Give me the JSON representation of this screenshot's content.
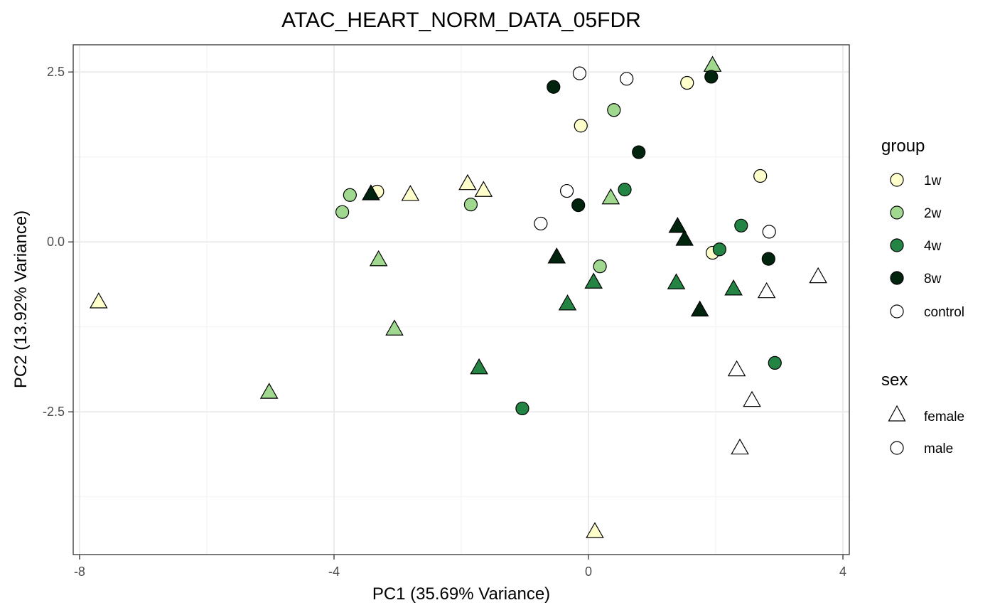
{
  "chart_data": {
    "type": "scatter",
    "title": "ATAC_HEART_NORM_DATA_05FDR",
    "xlabel": "PC1 (35.69% Variance)",
    "ylabel": "PC2 (13.92% Variance)",
    "xlim": [
      -8.1,
      4.1
    ],
    "ylim": [
      -4.6,
      2.9
    ],
    "x_ticks": [
      -8,
      -4,
      0,
      4
    ],
    "x_tick_labels": [
      "-8",
      "-4",
      "0",
      "4"
    ],
    "y_ticks": [
      2.5,
      0.0,
      -2.5
    ],
    "y_tick_labels": [
      "2.5",
      "0.0",
      "-2.5"
    ],
    "grid": true,
    "legend_placement": "right",
    "colors": {
      "1w": "#ffffcc",
      "2w": "#a1d88f",
      "4w": "#238443",
      "8w": "#00240e",
      "control": "#ffffff"
    },
    "legends": [
      {
        "title": "group",
        "entries": [
          "1w",
          "2w",
          "4w",
          "8w",
          "control"
        ]
      },
      {
        "title": "sex",
        "entries": [
          "female",
          "male"
        ]
      }
    ],
    "points": [
      {
        "x": -7.7,
        "y": -0.88,
        "group": "1w",
        "sex": "female"
      },
      {
        "x": -3.32,
        "y": 0.74,
        "group": "1w",
        "sex": "male"
      },
      {
        "x": -2.8,
        "y": 0.7,
        "group": "1w",
        "sex": "female"
      },
      {
        "x": -1.9,
        "y": 0.86,
        "group": "1w",
        "sex": "female"
      },
      {
        "x": -1.65,
        "y": 0.76,
        "group": "1w",
        "sex": "female"
      },
      {
        "x": -0.12,
        "y": 1.71,
        "group": "1w",
        "sex": "male"
      },
      {
        "x": 1.55,
        "y": 2.34,
        "group": "1w",
        "sex": "male"
      },
      {
        "x": 1.95,
        "y": -0.16,
        "group": "1w",
        "sex": "male"
      },
      {
        "x": 2.7,
        "y": 0.97,
        "group": "1w",
        "sex": "male"
      },
      {
        "x": 0.1,
        "y": -4.26,
        "group": "1w",
        "sex": "female"
      },
      {
        "x": -3.87,
        "y": 0.44,
        "group": "2w",
        "sex": "male"
      },
      {
        "x": -3.75,
        "y": 0.69,
        "group": "2w",
        "sex": "male"
      },
      {
        "x": -1.85,
        "y": 0.55,
        "group": "2w",
        "sex": "male"
      },
      {
        "x": -3.3,
        "y": -0.26,
        "group": "2w",
        "sex": "female"
      },
      {
        "x": -3.05,
        "y": -1.28,
        "group": "2w",
        "sex": "female"
      },
      {
        "x": -5.02,
        "y": -2.21,
        "group": "2w",
        "sex": "female"
      },
      {
        "x": 0.4,
        "y": 1.94,
        "group": "2w",
        "sex": "male"
      },
      {
        "x": 0.35,
        "y": 0.65,
        "group": "2w",
        "sex": "female"
      },
      {
        "x": 0.18,
        "y": -0.36,
        "group": "2w",
        "sex": "male"
      },
      {
        "x": 1.95,
        "y": 2.6,
        "group": "2w",
        "sex": "female"
      },
      {
        "x": 0.57,
        "y": 0.77,
        "group": "4w",
        "sex": "male"
      },
      {
        "x": 0.08,
        "y": -0.59,
        "group": "4w",
        "sex": "female"
      },
      {
        "x": -0.33,
        "y": -0.91,
        "group": "4w",
        "sex": "female"
      },
      {
        "x": -1.72,
        "y": -1.85,
        "group": "4w",
        "sex": "female"
      },
      {
        "x": -1.04,
        "y": -2.45,
        "group": "4w",
        "sex": "male"
      },
      {
        "x": 1.38,
        "y": -0.6,
        "group": "4w",
        "sex": "female"
      },
      {
        "x": 2.06,
        "y": -0.11,
        "group": "4w",
        "sex": "male"
      },
      {
        "x": 2.28,
        "y": -0.69,
        "group": "4w",
        "sex": "female"
      },
      {
        "x": 2.4,
        "y": 0.24,
        "group": "4w",
        "sex": "male"
      },
      {
        "x": 2.93,
        "y": -1.78,
        "group": "4w",
        "sex": "male"
      },
      {
        "x": -0.55,
        "y": 2.28,
        "group": "8w",
        "sex": "male"
      },
      {
        "x": -3.42,
        "y": 0.71,
        "group": "8w",
        "sex": "female"
      },
      {
        "x": -0.5,
        "y": -0.22,
        "group": "8w",
        "sex": "female"
      },
      {
        "x": -0.16,
        "y": 0.54,
        "group": "8w",
        "sex": "male"
      },
      {
        "x": 0.79,
        "y": 1.32,
        "group": "8w",
        "sex": "male"
      },
      {
        "x": 1.4,
        "y": 0.23,
        "group": "8w",
        "sex": "female"
      },
      {
        "x": 1.51,
        "y": 0.04,
        "group": "8w",
        "sex": "female"
      },
      {
        "x": 1.75,
        "y": -1.0,
        "group": "8w",
        "sex": "female"
      },
      {
        "x": 1.93,
        "y": 2.43,
        "group": "8w",
        "sex": "male"
      },
      {
        "x": 2.83,
        "y": -0.25,
        "group": "8w",
        "sex": "male"
      },
      {
        "x": -0.14,
        "y": 2.48,
        "group": "control",
        "sex": "male"
      },
      {
        "x": 0.6,
        "y": 2.4,
        "group": "control",
        "sex": "male"
      },
      {
        "x": -0.34,
        "y": 0.75,
        "group": "control",
        "sex": "male"
      },
      {
        "x": -0.75,
        "y": 0.27,
        "group": "control",
        "sex": "male"
      },
      {
        "x": 2.84,
        "y": 0.15,
        "group": "control",
        "sex": "male"
      },
      {
        "x": 2.8,
        "y": -0.73,
        "group": "control",
        "sex": "female"
      },
      {
        "x": 3.61,
        "y": -0.51,
        "group": "control",
        "sex": "female"
      },
      {
        "x": 2.33,
        "y": -1.88,
        "group": "control",
        "sex": "female"
      },
      {
        "x": 2.57,
        "y": -2.33,
        "group": "control",
        "sex": "female"
      },
      {
        "x": 2.38,
        "y": -3.03,
        "group": "control",
        "sex": "female"
      }
    ]
  }
}
